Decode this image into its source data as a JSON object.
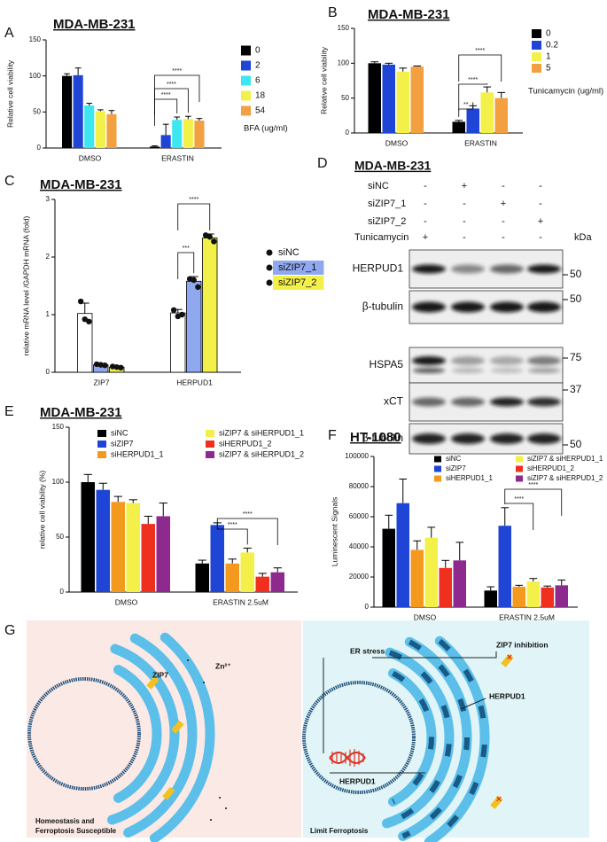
{
  "panel_labels": [
    "A",
    "B",
    "C",
    "D",
    "E",
    "F",
    "G"
  ],
  "chart_data": [
    {
      "type": "bar",
      "title": "MDA-MB-231",
      "ylabel": "Relative cell viability",
      "categories": [
        "DMSO",
        "ERASTIN"
      ],
      "legend_title": "BFA (ug/ml)",
      "series": [
        {
          "name": "0",
          "color": "#000000",
          "values": [
            100,
            2
          ],
          "errors": [
            3,
            1
          ]
        },
        {
          "name": "2",
          "color": "#1f45d6",
          "values": [
            101,
            18
          ],
          "errors": [
            10,
            15
          ]
        },
        {
          "name": "6",
          "color": "#3ee6f0",
          "values": [
            59,
            39
          ],
          "errors": [
            3,
            4
          ]
        },
        {
          "name": "18",
          "color": "#f3f04a",
          "values": [
            51,
            40
          ],
          "errors": [
            2,
            4
          ]
        },
        {
          "name": "54",
          "color": "#f3a040",
          "values": [
            47,
            38
          ],
          "errors": [
            5,
            3
          ]
        }
      ],
      "ylim": [
        0,
        150
      ],
      "yticks": [
        0,
        50,
        100,
        150
      ],
      "annotations": [
        "****",
        "****",
        "****"
      ]
    },
    {
      "type": "bar",
      "title": "MDA-MB-231",
      "ylabel": "Relative cell viability",
      "categories": [
        "DMSO",
        "ERASTIN"
      ],
      "legend_title": "Tunicamycin (ug/ml)",
      "series": [
        {
          "name": "0",
          "color": "#000000",
          "values": [
            100,
            16
          ],
          "errors": [
            2,
            2
          ]
        },
        {
          "name": "0.2",
          "color": "#1f45d6",
          "values": [
            98,
            35
          ],
          "errors": [
            2,
            4
          ]
        },
        {
          "name": "1",
          "color": "#f3f04a",
          "values": [
            88,
            58
          ],
          "errors": [
            5,
            8
          ]
        },
        {
          "name": "5",
          "color": "#f3a040",
          "values": [
            95,
            50
          ],
          "errors": [
            1,
            8
          ]
        }
      ],
      "ylim": [
        0,
        150
      ],
      "yticks": [
        0,
        50,
        100,
        150
      ],
      "annotations": [
        "**",
        "****",
        "****"
      ]
    },
    {
      "type": "bar",
      "title": "MDA-MB-231",
      "ylabel": "relative mRNA level /GAPDH mRNA (fold)",
      "categories": [
        "ZIP7",
        "HERPUD1"
      ],
      "series": [
        {
          "name": "siNC",
          "color": "#ffffff",
          "values": [
            1.02,
            1.03
          ],
          "errors": [
            0.18,
            0.06
          ],
          "points": [
            [
              1.23,
              0.92,
              0.88
            ],
            [
              1.08,
              0.97,
              1.0
            ]
          ]
        },
        {
          "name": "siZIP7_1",
          "color": "#8fa8f0",
          "values": [
            0.13,
            1.58
          ],
          "errors": [
            0.02,
            0.08
          ],
          "points": [
            [
              0.14,
              0.13,
              0.12
            ],
            [
              1.62,
              1.6,
              1.48
            ]
          ]
        },
        {
          "name": "siZIP7_2",
          "color": "#f3f04a",
          "values": [
            0.09,
            2.33
          ],
          "errors": [
            0.02,
            0.07
          ],
          "points": [
            [
              0.1,
              0.09,
              0.08
            ],
            [
              2.38,
              2.35,
              2.27
            ]
          ]
        }
      ],
      "ylim": [
        0,
        3
      ],
      "yticks": [
        0,
        1,
        2,
        3
      ],
      "annotations": [
        "***",
        "****"
      ]
    },
    {
      "type": "bar",
      "title": "MDA-MB-231",
      "ylabel": "relative cell viability (%)",
      "categories": [
        "DMSO",
        "ERASTIN 2.5uM"
      ],
      "series": [
        {
          "name": "siNC",
          "color": "#000000",
          "values": [
            100,
            26
          ],
          "errors": [
            7,
            3
          ]
        },
        {
          "name": "siZIP7",
          "color": "#1f45d6",
          "values": [
            93,
            61
          ],
          "errors": [
            6,
            2
          ]
        },
        {
          "name": "siHERPUD1_1",
          "color": "#f39a1e",
          "values": [
            82,
            26
          ],
          "errors": [
            5,
            4
          ]
        },
        {
          "name": "siZIP7 & siHERPUD1_1",
          "color": "#f3f04a",
          "values": [
            81,
            36
          ],
          "errors": [
            3,
            4
          ]
        },
        {
          "name": "siHERPUD1_2",
          "color": "#f0301e",
          "values": [
            62,
            14
          ],
          "errors": [
            7,
            3
          ]
        },
        {
          "name": "siZIP7 & siHERPUD1_2",
          "color": "#8e2a8e",
          "values": [
            69,
            18
          ],
          "errors": [
            12,
            4
          ]
        }
      ],
      "ylim": [
        0,
        150
      ],
      "yticks": [
        0,
        50,
        100,
        150
      ],
      "annotations": [
        "****",
        "****"
      ]
    },
    {
      "type": "bar",
      "title": "HT-1080",
      "ylabel": "Luminescent Signals",
      "categories": [
        "DMSO",
        "ERASTIN 2.5uM"
      ],
      "series": [
        {
          "name": "siNC",
          "color": "#000000",
          "values": [
            52000,
            11000
          ],
          "errors": [
            9000,
            2500
          ]
        },
        {
          "name": "siZIP7",
          "color": "#1f45d6",
          "values": [
            69000,
            54000
          ],
          "errors": [
            16000,
            12000
          ]
        },
        {
          "name": "siHERPUD1_1",
          "color": "#f39a1e",
          "values": [
            38000,
            13500
          ],
          "errors": [
            6000,
            1000
          ]
        },
        {
          "name": "siZIP7 & siHERPUD1_1",
          "color": "#f3f04a",
          "values": [
            46000,
            17000
          ],
          "errors": [
            7000,
            2000
          ]
        },
        {
          "name": "siHERPUD1_2",
          "color": "#f0301e",
          "values": [
            26000,
            13000
          ],
          "errors": [
            5000,
            1000
          ]
        },
        {
          "name": "siZIP7 & siHERPUD1_2",
          "color": "#8e2a8e",
          "values": [
            31000,
            14500
          ],
          "errors": [
            12000,
            3500
          ]
        }
      ],
      "ylim": [
        0,
        100000
      ],
      "yticks": [
        0,
        20000,
        40000,
        60000,
        80000,
        100000
      ],
      "annotations": [
        "****",
        "****"
      ]
    }
  ],
  "blot": {
    "title": "MDA-MB-231",
    "unit": "kDa",
    "conditions": [
      {
        "name": "siNC",
        "marks": [
          "-",
          "+",
          "-",
          "-"
        ]
      },
      {
        "name": "siZIP7_1",
        "marks": [
          "-",
          "-",
          "+",
          "-"
        ]
      },
      {
        "name": "siZIP7_2",
        "marks": [
          "-",
          "-",
          "-",
          "+"
        ]
      },
      {
        "name": "Tunicamycin",
        "marks": [
          "+",
          "-",
          "-",
          "-"
        ]
      }
    ],
    "proteins": [
      {
        "name": "HERPUD1",
        "marker": "50"
      },
      {
        "name": "β-tubulin",
        "marker": "50"
      },
      {
        "name": "HSPA5",
        "marker": "75"
      },
      {
        "name": "xCT",
        "marker": "37"
      },
      {
        "name": "β-tubulin",
        "marker": "50"
      }
    ]
  },
  "diagram": {
    "left": {
      "labels": [
        "ZIP7",
        "Zn²⁺"
      ],
      "caption": [
        "Homeostasis and",
        "Ferroptosis Susceptible"
      ]
    },
    "right": {
      "labels": [
        "ER stress",
        "ZIP7 inhibition",
        "HERPUD1",
        "HERPUD1"
      ],
      "caption": [
        "Limit Ferroptosis"
      ]
    }
  }
}
